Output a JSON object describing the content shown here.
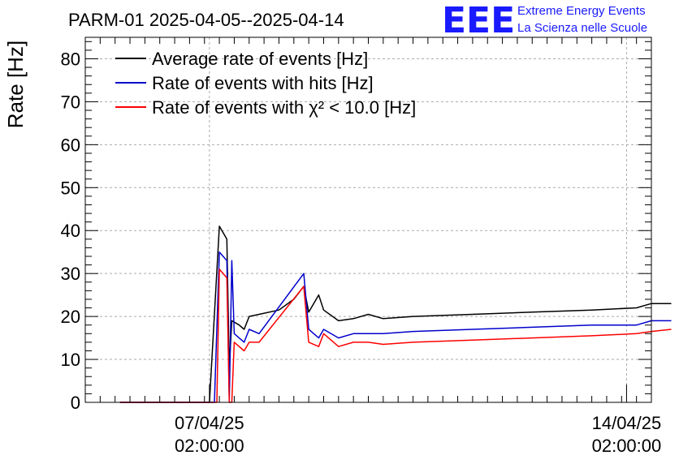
{
  "logo": {
    "mark": "EEE",
    "line1": "Extreme Energy Events",
    "line2": "La Scienza nelle Scuole",
    "color": "#1a1aff"
  },
  "chart_data": {
    "type": "line",
    "title": "PARM-01 2025-04-05--2025-04-14",
    "ylabel": "Rate [Hz]",
    "xlabel": "",
    "xlim": [
      "2025-04-05 00:00",
      "2025-04-14 12:00"
    ],
    "ylim": [
      0,
      85
    ],
    "y_ticks": [
      0,
      10,
      20,
      30,
      40,
      50,
      60,
      70,
      80
    ],
    "x_ticks": [
      {
        "t": "2025-04-07 02:00",
        "line1": "07/04/25",
        "line2": "02:00:00"
      },
      {
        "t": "2025-04-14 02:00",
        "line1": "14/04/25",
        "line2": "02:00:00"
      }
    ],
    "grid": true,
    "legend_position": "top-left",
    "series": [
      {
        "name": "Average rate of events [Hz]",
        "color": "#000000",
        "points": [
          [
            "2025-04-05 14:00",
            0
          ],
          [
            "2025-04-06 20:00",
            0
          ],
          [
            "2025-04-07 02:00",
            0
          ],
          [
            "2025-04-07 06:00",
            41
          ],
          [
            "2025-04-07 09:00",
            38
          ],
          [
            "2025-04-07 10:00",
            8
          ],
          [
            "2025-04-07 11:00",
            19
          ],
          [
            "2025-04-07 14:00",
            18
          ],
          [
            "2025-04-07 16:00",
            17
          ],
          [
            "2025-04-07 18:00",
            20
          ],
          [
            "2025-04-07 22:00",
            20.5
          ],
          [
            "2025-04-08 06:00",
            21.5
          ],
          [
            "2025-04-08 12:00",
            24
          ],
          [
            "2025-04-08 16:00",
            27
          ],
          [
            "2025-04-08 18:00",
            21
          ],
          [
            "2025-04-08 22:00",
            25
          ],
          [
            "2025-04-09 00:00",
            21.5
          ],
          [
            "2025-04-09 06:00",
            19
          ],
          [
            "2025-04-09 12:00",
            19.5
          ],
          [
            "2025-04-09 18:00",
            20.5
          ],
          [
            "2025-04-10 00:00",
            19.5
          ],
          [
            "2025-04-10 12:00",
            20
          ],
          [
            "2025-04-11 12:00",
            20.5
          ],
          [
            "2025-04-12 12:00",
            21
          ],
          [
            "2025-04-13 12:00",
            21.5
          ],
          [
            "2025-04-14 06:00",
            22
          ],
          [
            "2025-04-14 12:00",
            23
          ],
          [
            "2025-04-14 20:00",
            23
          ]
        ]
      },
      {
        "name": "Rate of events with hits [Hz]",
        "color": "#0000cc",
        "points": [
          [
            "2025-04-05 14:00",
            0
          ],
          [
            "2025-04-06 20:00",
            0
          ],
          [
            "2025-04-07 04:00",
            0
          ],
          [
            "2025-04-07 06:00",
            35
          ],
          [
            "2025-04-07 09:00",
            33
          ],
          [
            "2025-04-07 10:00",
            0
          ],
          [
            "2025-04-07 11:00",
            33
          ],
          [
            "2025-04-07 12:00",
            16
          ],
          [
            "2025-04-07 16:00",
            14
          ],
          [
            "2025-04-07 18:00",
            17
          ],
          [
            "2025-04-07 22:00",
            16
          ],
          [
            "2025-04-08 16:00",
            30
          ],
          [
            "2025-04-08 18:00",
            17
          ],
          [
            "2025-04-08 22:00",
            15
          ],
          [
            "2025-04-09 00:00",
            17
          ],
          [
            "2025-04-09 06:00",
            15
          ],
          [
            "2025-04-09 12:00",
            16
          ],
          [
            "2025-04-09 18:00",
            16
          ],
          [
            "2025-04-10 00:00",
            16
          ],
          [
            "2025-04-10 12:00",
            16.5
          ],
          [
            "2025-04-11 12:00",
            17
          ],
          [
            "2025-04-12 12:00",
            17.5
          ],
          [
            "2025-04-13 12:00",
            18
          ],
          [
            "2025-04-14 06:00",
            18
          ],
          [
            "2025-04-14 12:00",
            19
          ],
          [
            "2025-04-14 20:00",
            19
          ]
        ]
      },
      {
        "name": "Rate of events with χ² < 10.0 [Hz]",
        "color": "#ff0000",
        "points": [
          [
            "2025-04-05 14:00",
            0
          ],
          [
            "2025-04-06 20:00",
            0
          ],
          [
            "2025-04-07 05:00",
            0
          ],
          [
            "2025-04-07 06:00",
            31
          ],
          [
            "2025-04-07 09:00",
            29
          ],
          [
            "2025-04-07 10:00",
            0
          ],
          [
            "2025-04-07 11:00",
            0
          ],
          [
            "2025-04-07 12:00",
            14
          ],
          [
            "2025-04-07 16:00",
            12
          ],
          [
            "2025-04-07 18:00",
            14
          ],
          [
            "2025-04-07 22:00",
            14
          ],
          [
            "2025-04-08 16:00",
            27
          ],
          [
            "2025-04-08 18:00",
            14
          ],
          [
            "2025-04-08 22:00",
            13
          ],
          [
            "2025-04-09 00:00",
            16
          ],
          [
            "2025-04-09 06:00",
            13
          ],
          [
            "2025-04-09 12:00",
            14
          ],
          [
            "2025-04-09 18:00",
            14
          ],
          [
            "2025-04-10 00:00",
            13.5
          ],
          [
            "2025-04-10 12:00",
            14
          ],
          [
            "2025-04-11 12:00",
            14.5
          ],
          [
            "2025-04-12 12:00",
            15
          ],
          [
            "2025-04-13 12:00",
            15.5
          ],
          [
            "2025-04-14 06:00",
            16
          ],
          [
            "2025-04-14 12:00",
            16.5
          ],
          [
            "2025-04-14 20:00",
            17
          ]
        ]
      }
    ]
  }
}
